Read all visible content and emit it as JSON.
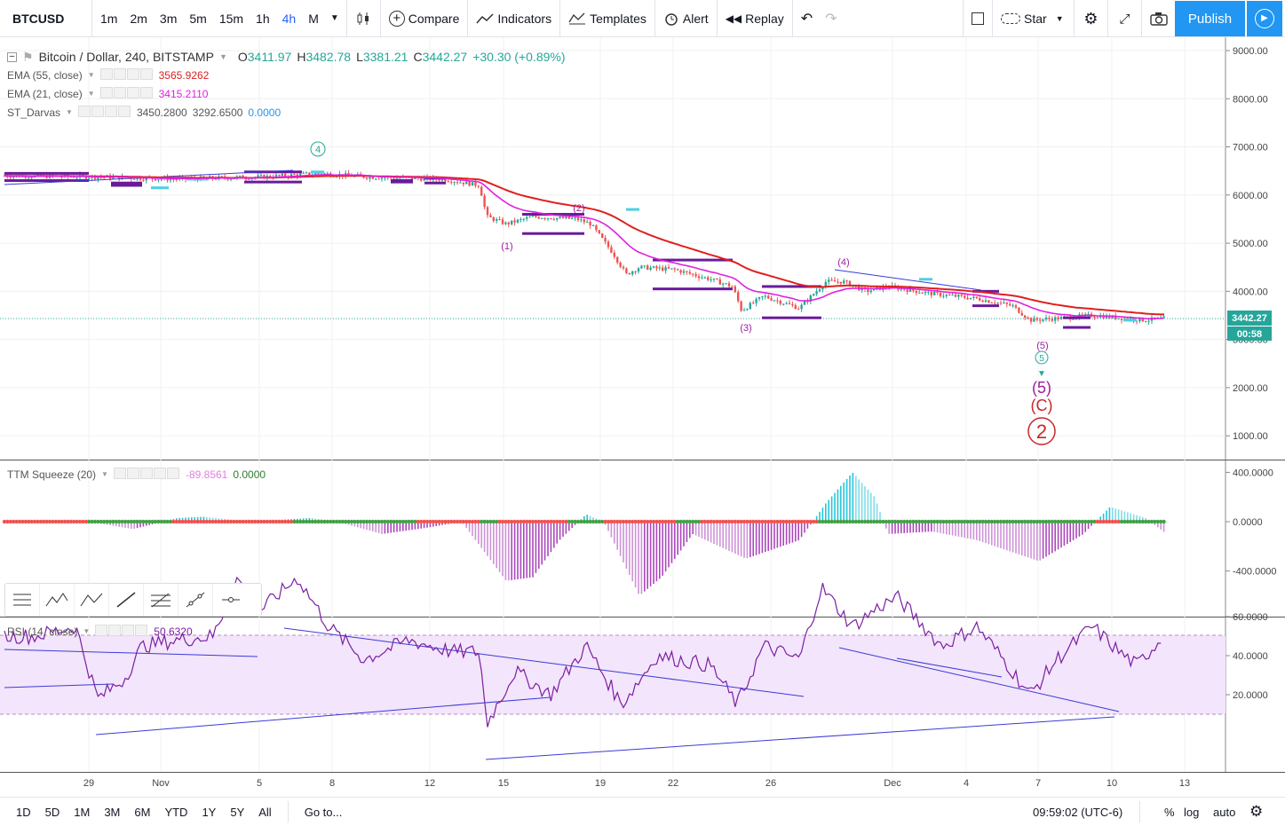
{
  "toolbar": {
    "symbol": "BTCUSD",
    "intervals": [
      "1m",
      "2m",
      "3m",
      "5m",
      "15m",
      "1h",
      "4h",
      "M"
    ],
    "active_interval": "4h",
    "compare": "Compare",
    "indicators": "Indicators",
    "templates": "Templates",
    "alert": "Alert",
    "replay": "Replay",
    "star": "Star",
    "publish": "Publish"
  },
  "legend": {
    "title": "Bitcoin / Dollar, 240, BITSTAMP",
    "o_label": "O",
    "o": "3411.97",
    "h_label": "H",
    "h": "3482.78",
    "l_label": "L",
    "l": "3381.21",
    "c_label": "C",
    "c": "3442.27",
    "change": "+30.30 (+0.89%)",
    "ema55_label": "EMA (55, close)",
    "ema55": "3565.9262",
    "ema21_label": "EMA (21, close)",
    "ema21": "3415.2110",
    "darvas_label": "ST_Darvas",
    "darvas_v1": "3450.2800",
    "darvas_v2": "3292.6500",
    "darvas_v3": "0.0000"
  },
  "ttm": {
    "label": "TTM Squeeze (20)",
    "v1": "-89.8561",
    "v2": "0.0000"
  },
  "rsi": {
    "label": "RSI (14, close)",
    "value": "50.6320"
  },
  "price_axis": [
    "9000.00",
    "8000.00",
    "7000.00",
    "6000.00",
    "5000.00",
    "4000.00",
    "3000.00",
    "2000.00",
    "1000.00"
  ],
  "last_price": "3442.27",
  "countdown": "00:58",
  "ttm_axis": [
    "400.0000",
    "0.0000",
    "-400.0000"
  ],
  "rsi_axis": [
    "60.0000",
    "40.0000",
    "20.0000"
  ],
  "time_axis": [
    "29",
    "Nov",
    "5",
    "8",
    "12",
    "15",
    "19",
    "22",
    "26",
    "Dec",
    "4",
    "7",
    "10",
    "13"
  ],
  "wave_labels": [
    "4",
    "(2)",
    "(1)",
    "(3)",
    "(4)",
    "(5)",
    "5",
    "(5)",
    "(C)",
    "2"
  ],
  "bottom": {
    "ranges": [
      "1D",
      "5D",
      "1M",
      "3M",
      "6M",
      "YTD",
      "1Y",
      "5Y",
      "All"
    ],
    "goto": "Go to...",
    "time": "09:59:02 (UTC-6)",
    "percent": "%",
    "log": "log",
    "auto": "auto"
  },
  "colors": {
    "ema55": "#e01f1f",
    "ema21": "#e020e0",
    "up": "#26a69a",
    "down": "#ef5350",
    "accent": "#2196f3",
    "darvas": "#6a1b9a",
    "rsi_band": "#f3e5fb"
  }
}
